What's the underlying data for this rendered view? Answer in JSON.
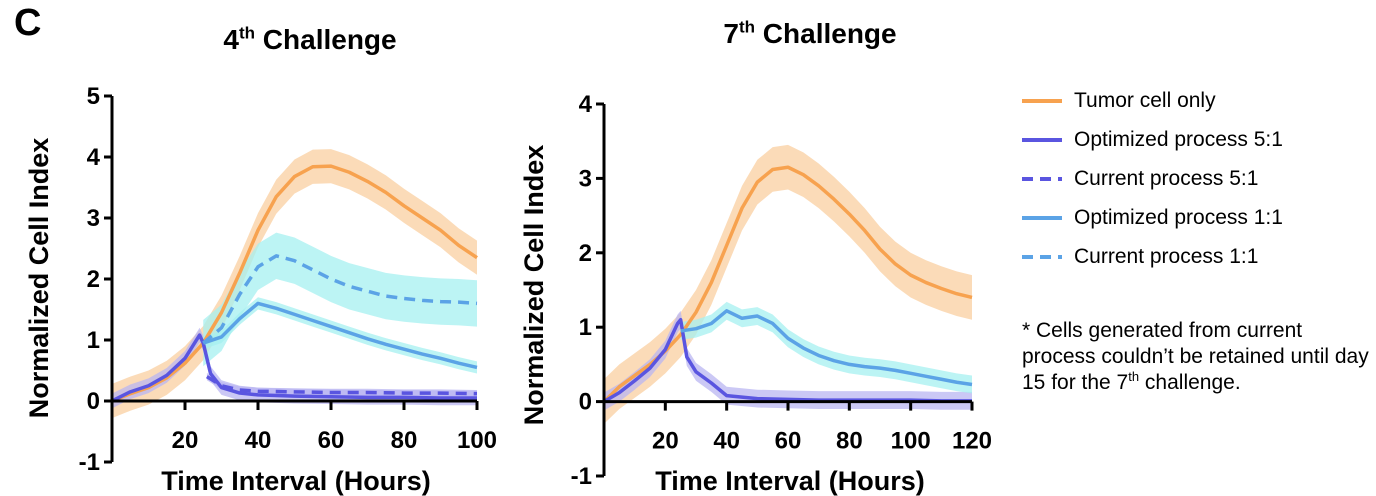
{
  "panel_label": "C",
  "footnote": {
    "prefix": "* Cells generated from current process couldn’t be retained until day 15 for the 7",
    "sup": "th",
    "suffix": " challenge."
  },
  "colors": {
    "tumor": "#f7a24f",
    "tumor_band": "#f9cfa0",
    "opt51": "#5a55e0",
    "cur51": "#5a55e0",
    "band51": "#b9b6f2",
    "opt11": "#5ba3e6",
    "cur11": "#5ba3e6",
    "band11": "#a6f0f0"
  },
  "legend": [
    {
      "label": "Tumor cell only",
      "color": "#f7a24f",
      "dash": false
    },
    {
      "label": "Optimized process 5:1",
      "color": "#5a55e0",
      "dash": false
    },
    {
      "label": "Current process 5:1",
      "color": "#5a55e0",
      "dash": true
    },
    {
      "label": "Optimized process 1:1",
      "color": "#5ba3e6",
      "dash": false
    },
    {
      "label": "Current process 1:1",
      "color": "#5ba3e6",
      "dash": true
    }
  ],
  "chart_data": [
    {
      "type": "line",
      "title_base": "4",
      "title_sup": "th",
      "title_rest": " Challenge",
      "xlabel": "Time Interval (Hours)",
      "ylabel": "Normalized Cell Index",
      "xlim": [
        0,
        100
      ],
      "ylim": [
        -1,
        5
      ],
      "xticks": [
        20,
        40,
        60,
        80,
        100
      ],
      "yticks": [
        -1,
        0,
        1,
        2,
        3,
        4,
        5
      ],
      "series": [
        {
          "key": "tumor",
          "dash": false,
          "band": 0.28,
          "x": [
            0,
            5,
            10,
            15,
            20,
            25,
            30,
            35,
            40,
            45,
            50,
            55,
            60,
            65,
            70,
            75,
            80,
            85,
            90,
            95,
            100
          ],
          "y": [
            0,
            0.12,
            0.22,
            0.38,
            0.62,
            0.95,
            1.45,
            2.1,
            2.8,
            3.35,
            3.68,
            3.84,
            3.85,
            3.75,
            3.6,
            3.42,
            3.2,
            3.0,
            2.8,
            2.55,
            2.35
          ]
        },
        {
          "key": "opt51",
          "dash": false,
          "band": 0.12,
          "x": [
            0,
            5,
            10,
            15,
            20,
            24,
            25,
            27,
            30,
            35,
            40,
            50,
            60,
            70,
            80,
            90,
            100
          ],
          "y": [
            0,
            0.15,
            0.25,
            0.42,
            0.7,
            1.08,
            0.95,
            0.45,
            0.22,
            0.13,
            0.1,
            0.08,
            0.07,
            0.06,
            0.06,
            0.05,
            0.05
          ]
        },
        {
          "key": "cur51",
          "dash": true,
          "band": 0.06,
          "x": [
            26,
            30,
            35,
            40,
            50,
            60,
            70,
            80,
            90,
            100
          ],
          "y": [
            0.4,
            0.25,
            0.18,
            0.16,
            0.15,
            0.14,
            0.14,
            0.13,
            0.13,
            0.12
          ]
        },
        {
          "key": "opt11",
          "dash": false,
          "band": 0.1,
          "x": [
            25,
            30,
            35,
            40,
            45,
            50,
            55,
            60,
            65,
            70,
            75,
            80,
            85,
            90,
            95,
            100
          ],
          "y": [
            0.95,
            1.05,
            1.35,
            1.6,
            1.52,
            1.42,
            1.32,
            1.22,
            1.12,
            1.02,
            0.93,
            0.85,
            0.77,
            0.7,
            0.62,
            0.55
          ]
        },
        {
          "key": "cur11",
          "dash": true,
          "band": 0.38,
          "x": [
            25,
            30,
            35,
            40,
            45,
            50,
            55,
            60,
            65,
            70,
            75,
            80,
            85,
            90,
            95,
            100
          ],
          "y": [
            0.95,
            1.2,
            1.75,
            2.2,
            2.38,
            2.3,
            2.15,
            2.0,
            1.88,
            1.8,
            1.72,
            1.68,
            1.65,
            1.63,
            1.62,
            1.6
          ]
        }
      ]
    },
    {
      "type": "line",
      "title_base": "7",
      "title_sup": "th",
      "title_rest": " Challenge",
      "xlabel": "Time Interval (Hours)",
      "ylabel": "Normalized Cell Index",
      "xlim": [
        0,
        120
      ],
      "ylim": [
        -1,
        4
      ],
      "xticks": [
        20,
        40,
        60,
        80,
        100,
        120
      ],
      "yticks": [
        -1,
        0,
        1,
        2,
        3,
        4
      ],
      "series": [
        {
          "key": "tumor",
          "dash": false,
          "band": 0.3,
          "x": [
            0,
            5,
            10,
            15,
            20,
            25,
            30,
            35,
            40,
            45,
            50,
            55,
            60,
            65,
            70,
            75,
            80,
            85,
            90,
            95,
            100,
            105,
            110,
            115,
            120
          ],
          "y": [
            0,
            0.2,
            0.35,
            0.5,
            0.68,
            0.9,
            1.2,
            1.6,
            2.1,
            2.6,
            2.95,
            3.12,
            3.15,
            3.05,
            2.9,
            2.72,
            2.52,
            2.3,
            2.05,
            1.85,
            1.7,
            1.6,
            1.52,
            1.45,
            1.4
          ]
        },
        {
          "key": "opt51",
          "dash": false,
          "band": 0.12,
          "x": [
            0,
            5,
            10,
            15,
            20,
            24,
            25,
            27,
            30,
            35,
            40,
            50,
            60,
            70,
            80,
            90,
            100,
            110,
            120
          ],
          "y": [
            0,
            0.12,
            0.28,
            0.45,
            0.7,
            1.05,
            1.1,
            0.6,
            0.4,
            0.25,
            0.08,
            0.04,
            0.03,
            0.02,
            0.02,
            0.02,
            0.02,
            0.01,
            0.01
          ]
        },
        {
          "key": "opt11",
          "dash": false,
          "band": 0.12,
          "x": [
            25,
            30,
            35,
            40,
            45,
            50,
            55,
            60,
            65,
            70,
            75,
            80,
            85,
            90,
            95,
            100,
            105,
            110,
            115,
            120
          ],
          "y": [
            0.95,
            0.98,
            1.05,
            1.22,
            1.12,
            1.15,
            1.05,
            0.85,
            0.72,
            0.62,
            0.55,
            0.5,
            0.47,
            0.45,
            0.42,
            0.38,
            0.34,
            0.3,
            0.26,
            0.23
          ]
        }
      ]
    }
  ]
}
